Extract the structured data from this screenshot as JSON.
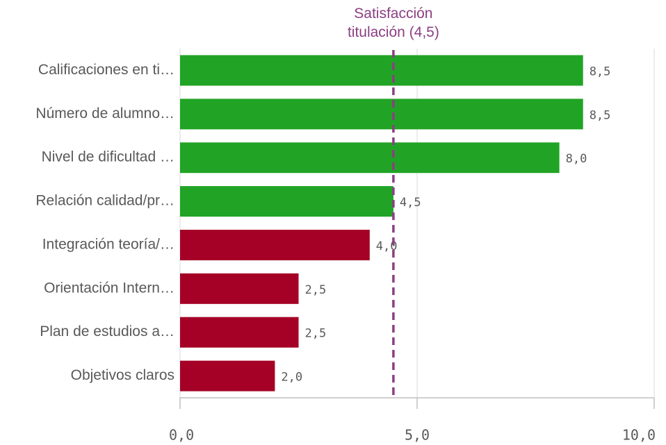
{
  "chart_data": {
    "type": "bar",
    "orientation": "horizontal",
    "categories": [
      "Calificaciones en ti…",
      "Número de alumno…",
      "Nivel de dificultad …",
      "Relación calidad/pr…",
      "Integración teoría/…",
      "Orientación Intern…",
      "Plan de estudios a…",
      "Objetivos claros"
    ],
    "values": [
      8.5,
      8.5,
      8.0,
      4.5,
      4.0,
      2.5,
      2.5,
      2.0
    ],
    "value_labels": [
      "8,5",
      "8,5",
      "8,0",
      "4,5",
      "4,0",
      "2,5",
      "2,5",
      "2,0"
    ],
    "colors": [
      "#21a425",
      "#21a425",
      "#21a425",
      "#21a425",
      "#a50026",
      "#a50026",
      "#a50026",
      "#a50026"
    ],
    "xlim": [
      0,
      10
    ],
    "xticks": [
      {
        "value": 0,
        "label": "0,0"
      },
      {
        "value": 5,
        "label": "5,0"
      },
      {
        "value": 10,
        "label": "10,0"
      }
    ],
    "grid": true,
    "reference_line": {
      "value": 4.5,
      "label": "Satisfacción titulación (4,5)",
      "color": "#8b3f82"
    }
  }
}
